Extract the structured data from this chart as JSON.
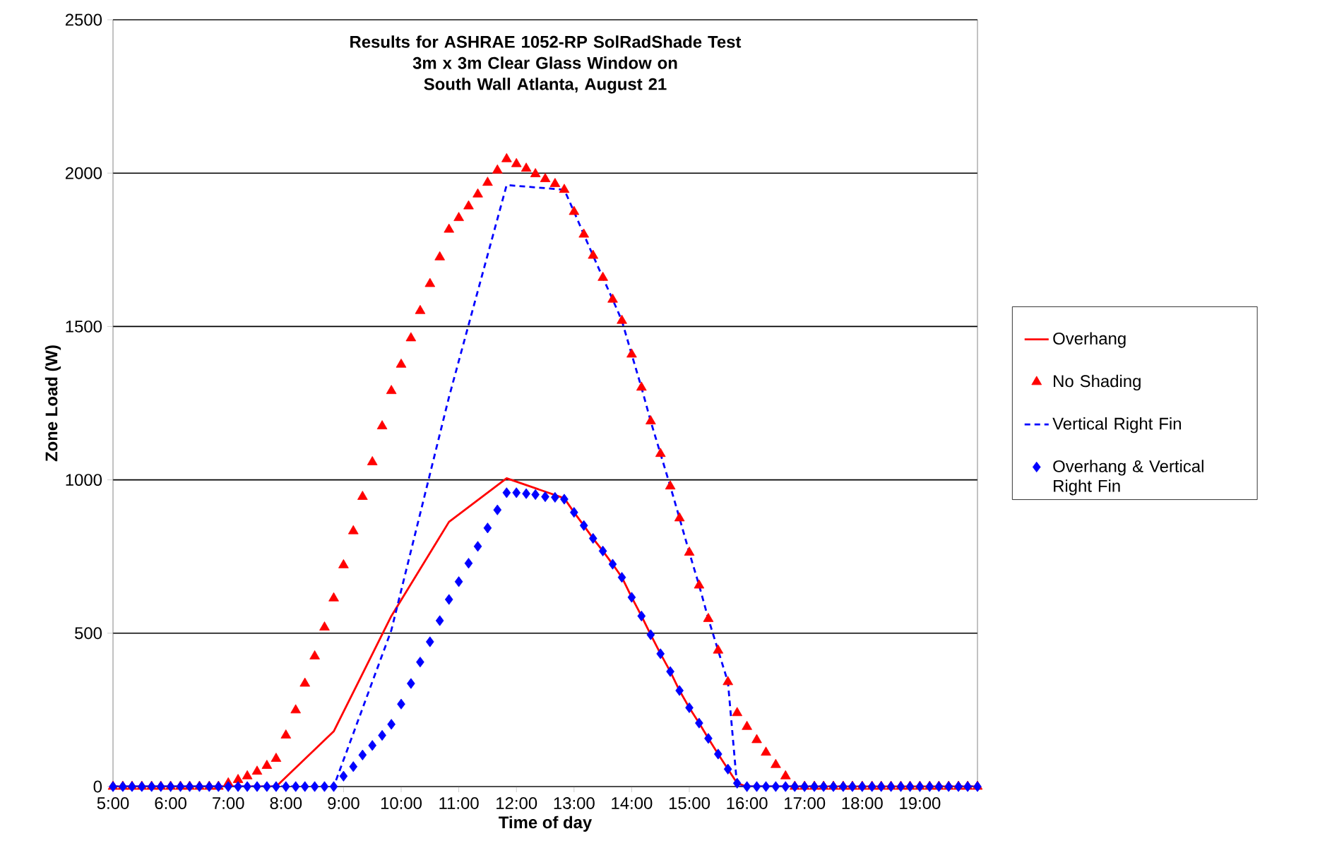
{
  "chart_data": {
    "type": "line",
    "title": "Results for ASHRAE 1052-RP SolRadShade Test",
    "subtitle": "3m x 3m Clear Glass Window on South Wall Atlanta, August 21",
    "xlabel": "Time of day",
    "ylabel": "Zone Load (W)",
    "x": [
      5,
      5.17,
      5.33,
      5.5,
      5.67,
      5.83,
      6,
      6.17,
      6.33,
      6.5,
      6.67,
      6.83,
      7,
      7.17,
      7.33,
      7.5,
      7.67,
      7.83,
      8,
      8.17,
      8.33,
      8.5,
      8.67,
      8.83,
      9,
      9.17,
      9.33,
      9.5,
      9.67,
      9.83,
      10,
      10.17,
      10.33,
      10.5,
      10.67,
      10.83,
      11,
      11.17,
      11.33,
      11.5,
      11.67,
      11.83,
      12,
      12.17,
      12.33,
      12.5,
      12.67,
      12.83,
      13,
      13.17,
      13.33,
      13.5,
      13.67,
      13.83,
      14,
      14.17,
      14.33,
      14.5,
      14.67,
      14.83,
      15,
      15.17,
      15.33,
      15.5,
      15.67,
      15.83,
      16,
      16.17,
      16.33,
      16.5,
      16.67,
      16.83,
      17,
      17.17,
      17.33,
      17.5,
      17.67,
      17.83,
      18,
      18.17,
      18.33,
      18.5,
      18.67,
      18.83,
      19,
      19.17,
      19.33,
      19.5,
      19.67,
      19.83,
      20
    ],
    "series": [
      {
        "name": "Overhang",
        "color": "#ff0000",
        "line_style": "solid",
        "marker": "none",
        "x": [
          5,
          7.83,
          8.83,
          9.83,
          10.83,
          11.83,
          12.83,
          13,
          13.17,
          13.33,
          13.5,
          13.67,
          13.83,
          14,
          14.17,
          14.33,
          14.5,
          14.67,
          14.83,
          15,
          15.17,
          15.33,
          15.5,
          15.67,
          15.83,
          16,
          20
        ],
        "values": [
          0,
          0,
          180,
          556,
          863,
          1005,
          940,
          894,
          851,
          809,
          768,
          725,
          682,
          617,
          556,
          495,
          433,
          375,
          313,
          257,
          207,
          157,
          106,
          57,
          11,
          0,
          0
        ]
      },
      {
        "name": "No Shading",
        "type": "scatter",
        "color": "#ff0000",
        "marker": "triangle",
        "values": [
          0,
          0,
          0,
          0,
          0,
          0,
          0,
          0,
          0,
          0,
          0,
          0,
          11,
          22,
          34,
          49,
          68,
          91,
          167,
          249,
          336,
          425,
          519,
          614,
          722,
          833,
          945,
          1058,
          1175,
          1290,
          1376,
          1462,
          1551,
          1639,
          1726,
          1816,
          1854,
          1892,
          1931,
          1969,
          2009,
          2046,
          2030,
          2015,
          1997,
          1981,
          1965,
          1946,
          1874,
          1800,
          1731,
          1659,
          1588,
          1519,
          1409,
          1301,
          1191,
          1085,
          979,
          875,
          763,
          656,
          547,
          444,
          341,
          240,
          195,
          152,
          111,
          71,
          34,
          0,
          0,
          0,
          0,
          0,
          0,
          0,
          0,
          0,
          0,
          0,
          0,
          0,
          0,
          0,
          0,
          0,
          0,
          0,
          0
        ]
      },
      {
        "name": "Vertical Right Fin",
        "color": "#0000ff",
        "line_style": "dashed",
        "marker": "none",
        "x": [
          5,
          8.83,
          9.83,
          10.83,
          11.83,
          12.83,
          13,
          13.17,
          13.33,
          13.5,
          13.67,
          13.83,
          14,
          14.17,
          14.33,
          14.5,
          14.67,
          14.83,
          15,
          15.17,
          15.33,
          15.5,
          15.67,
          15.83,
          20
        ],
        "values": [
          0,
          0,
          510,
          1270,
          1961,
          1946,
          1874,
          1800,
          1731,
          1659,
          1588,
          1519,
          1409,
          1301,
          1191,
          1085,
          979,
          875,
          763,
          656,
          547,
          444,
          341,
          0,
          0
        ]
      },
      {
        "name": "Overhang & Vertical Right Fin",
        "type": "scatter",
        "color": "#0000ff",
        "marker": "diamond",
        "values": [
          0,
          0,
          0,
          0,
          0,
          0,
          0,
          0,
          0,
          0,
          0,
          0,
          0,
          0,
          0,
          0,
          0,
          0,
          0,
          0,
          0,
          0,
          0,
          0,
          34,
          65,
          103,
          134,
          167,
          203,
          269,
          336,
          406,
          472,
          541,
          610,
          668,
          728,
          783,
          843,
          902,
          958,
          958,
          955,
          952,
          945,
          943,
          937,
          894,
          851,
          809,
          768,
          725,
          682,
          617,
          556,
          495,
          433,
          375,
          313,
          257,
          207,
          157,
          106,
          57,
          11,
          0,
          0,
          0,
          0,
          0,
          0,
          0,
          0,
          0,
          0,
          0,
          0,
          0,
          0,
          0,
          0,
          0,
          0,
          0,
          0,
          0,
          0,
          0,
          0,
          0
        ]
      }
    ],
    "xlim": [
      5,
      20
    ],
    "ylim": [
      0,
      2500
    ],
    "xticks": [
      {
        "value": 5,
        "label": "5:00"
      },
      {
        "value": 6,
        "label": "6:00"
      },
      {
        "value": 7,
        "label": "7:00"
      },
      {
        "value": 8,
        "label": "8:00"
      },
      {
        "value": 9,
        "label": "9:00"
      },
      {
        "value": 10,
        "label": "10:00"
      },
      {
        "value": 11,
        "label": "11:00"
      },
      {
        "value": 12,
        "label": "12:00"
      },
      {
        "value": 13,
        "label": "13:00"
      },
      {
        "value": 14,
        "label": "14:00"
      },
      {
        "value": 15,
        "label": "15:00"
      },
      {
        "value": 16,
        "label": "16:00"
      },
      {
        "value": 17,
        "label": "17:00"
      },
      {
        "value": 18,
        "label": "18:00"
      },
      {
        "value": 19,
        "label": "19:00"
      }
    ],
    "yticks": [
      0,
      500,
      1000,
      1500,
      2000,
      2500
    ],
    "grid": "y",
    "legend": "right"
  }
}
